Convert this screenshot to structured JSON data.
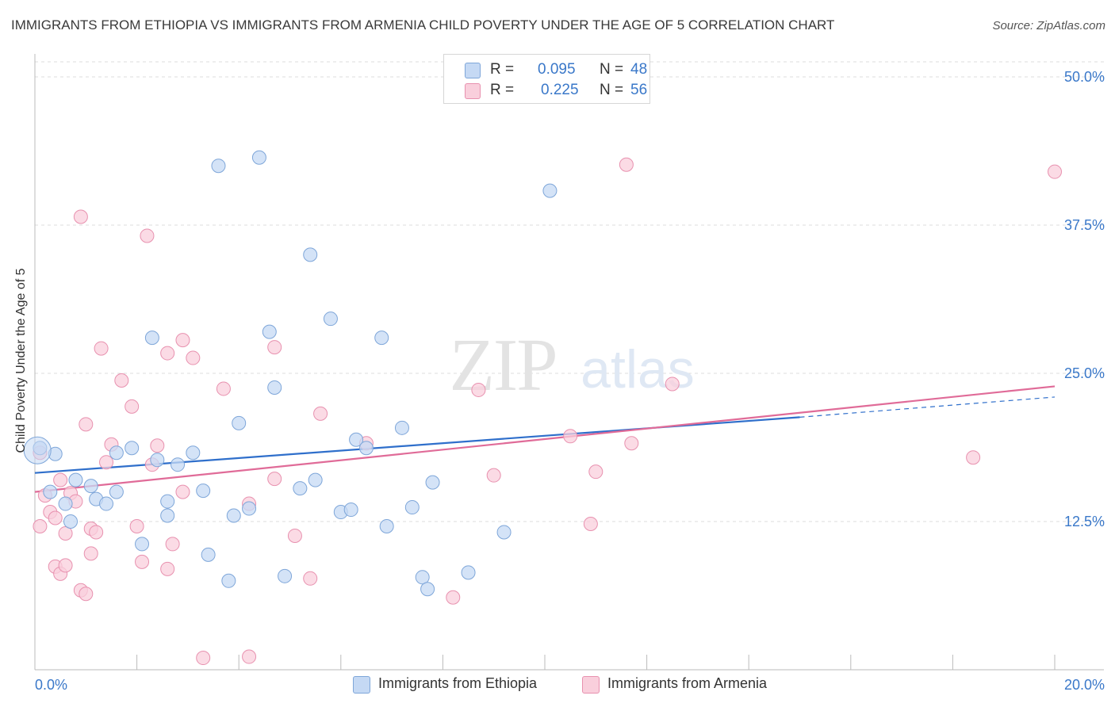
{
  "title": "IMMIGRANTS FROM ETHIOPIA VS IMMIGRANTS FROM ARMENIA CHILD POVERTY UNDER THE AGE OF 5 CORRELATION CHART",
  "source": "Source: ZipAtlas.com",
  "watermark": {
    "zip": "ZIP",
    "atlas": "atlas"
  },
  "legend": {
    "rows": [
      {
        "r_label": "R =",
        "r_value": "0.095",
        "n_label": "N =",
        "n_value": "48"
      },
      {
        "r_label": "R =",
        "r_value": "0.225",
        "n_label": "N =",
        "n_value": "56"
      }
    ]
  },
  "colors": {
    "ethiopia_fill": "#c5d9f4",
    "ethiopia_stroke": "#7ea6d9",
    "ethiopia_line": "#2f6fcb",
    "armenia_fill": "#f9cfdc",
    "armenia_stroke": "#e891af",
    "armenia_line": "#e06b98",
    "tick_label": "#3a78c9",
    "grid": "#dcdcdc"
  },
  "chart_data": {
    "type": "scatter",
    "title": "IMMIGRANTS FROM ETHIOPIA VS IMMIGRANTS FROM ARMENIA CHILD POVERTY UNDER THE AGE OF 5 CORRELATION CHART",
    "xlabel": "",
    "ylabel": "Child Poverty Under the Age of 5",
    "xlim": [
      0,
      20
    ],
    "ylim": [
      0,
      50
    ],
    "x_tick_labels": [
      "0.0%",
      "20.0%"
    ],
    "y_ticks": [
      12.5,
      25.0,
      37.5,
      50.0
    ],
    "y_tick_labels": [
      "12.5%",
      "25.0%",
      "37.5%",
      "50.0%"
    ],
    "grid": "horizontal dashed",
    "legend_position": "top-center",
    "series": [
      {
        "name": "Immigrants from Ethiopia",
        "color": "#7ea6d9",
        "trend": {
          "x": [
            0,
            15
          ],
          "y": [
            16.6,
            21.3
          ],
          "dashed_extension_to": [
            20,
            23.0
          ]
        },
        "points": [
          [
            0.1,
            18.7
          ],
          [
            0.4,
            18.2
          ],
          [
            0.3,
            15.0
          ],
          [
            0.6,
            14.0
          ],
          [
            0.8,
            16.0
          ],
          [
            0.7,
            12.5
          ],
          [
            1.1,
            15.5
          ],
          [
            1.2,
            14.4
          ],
          [
            1.4,
            14.0
          ],
          [
            1.6,
            15.0
          ],
          [
            1.6,
            18.3
          ],
          [
            1.9,
            18.7
          ],
          [
            2.1,
            10.6
          ],
          [
            2.3,
            28.0
          ],
          [
            2.4,
            17.7
          ],
          [
            2.6,
            14.2
          ],
          [
            2.6,
            13.0
          ],
          [
            2.8,
            17.3
          ],
          [
            3.1,
            18.3
          ],
          [
            3.3,
            15.1
          ],
          [
            3.4,
            9.7
          ],
          [
            3.6,
            42.5
          ],
          [
            3.8,
            7.5
          ],
          [
            3.9,
            13.0
          ],
          [
            4.0,
            20.8
          ],
          [
            4.2,
            13.6
          ],
          [
            4.4,
            43.2
          ],
          [
            4.6,
            28.5
          ],
          [
            4.7,
            23.8
          ],
          [
            4.9,
            7.9
          ],
          [
            5.2,
            15.3
          ],
          [
            5.4,
            35.0
          ],
          [
            5.5,
            16.0
          ],
          [
            5.8,
            29.6
          ],
          [
            6.0,
            13.3
          ],
          [
            6.2,
            13.5
          ],
          [
            6.3,
            19.4
          ],
          [
            6.5,
            18.7
          ],
          [
            6.8,
            28.0
          ],
          [
            6.9,
            12.1
          ],
          [
            7.2,
            20.4
          ],
          [
            7.4,
            13.7
          ],
          [
            7.6,
            7.8
          ],
          [
            7.7,
            6.8
          ],
          [
            7.8,
            15.8
          ],
          [
            8.5,
            8.2
          ],
          [
            9.2,
            11.6
          ],
          [
            10.1,
            40.4
          ]
        ]
      },
      {
        "name": "Immigrants from Armenia",
        "color": "#e891af",
        "trend": {
          "x": [
            0,
            20
          ],
          "y": [
            15.0,
            23.9
          ]
        },
        "points": [
          [
            0.1,
            18.3
          ],
          [
            0.1,
            12.1
          ],
          [
            0.2,
            14.7
          ],
          [
            0.3,
            13.3
          ],
          [
            0.4,
            12.8
          ],
          [
            0.4,
            8.7
          ],
          [
            0.5,
            16.0
          ],
          [
            0.5,
            8.1
          ],
          [
            0.6,
            11.5
          ],
          [
            0.6,
            8.8
          ],
          [
            0.7,
            14.9
          ],
          [
            0.8,
            14.2
          ],
          [
            0.9,
            6.7
          ],
          [
            0.9,
            38.2
          ],
          [
            1.0,
            6.4
          ],
          [
            1.0,
            20.7
          ],
          [
            1.1,
            9.8
          ],
          [
            1.1,
            11.9
          ],
          [
            1.2,
            11.6
          ],
          [
            1.3,
            27.1
          ],
          [
            1.4,
            17.5
          ],
          [
            1.5,
            19.0
          ],
          [
            1.7,
            24.4
          ],
          [
            1.9,
            22.2
          ],
          [
            2.0,
            12.1
          ],
          [
            2.1,
            9.1
          ],
          [
            2.2,
            36.6
          ],
          [
            2.3,
            17.3
          ],
          [
            2.4,
            18.9
          ],
          [
            2.6,
            8.5
          ],
          [
            2.6,
            26.7
          ],
          [
            2.7,
            10.6
          ],
          [
            2.9,
            15.0
          ],
          [
            2.9,
            27.8
          ],
          [
            3.1,
            26.3
          ],
          [
            3.3,
            1.0
          ],
          [
            3.7,
            23.7
          ],
          [
            4.2,
            14.0
          ],
          [
            4.2,
            1.1
          ],
          [
            4.7,
            16.1
          ],
          [
            4.7,
            27.2
          ],
          [
            5.1,
            11.3
          ],
          [
            5.4,
            7.7
          ],
          [
            5.6,
            21.6
          ],
          [
            6.5,
            19.1
          ],
          [
            8.2,
            6.1
          ],
          [
            8.7,
            23.6
          ],
          [
            9.0,
            16.4
          ],
          [
            10.5,
            19.7
          ],
          [
            10.9,
            12.3
          ],
          [
            11.0,
            16.7
          ],
          [
            11.6,
            42.6
          ],
          [
            11.7,
            19.1
          ],
          [
            12.5,
            24.1
          ],
          [
            18.4,
            17.9
          ],
          [
            20.0,
            42.0
          ]
        ]
      }
    ]
  },
  "bottom_legend": [
    {
      "label": "Immigrants from Ethiopia"
    },
    {
      "label": "Immigrants from Armenia"
    }
  ]
}
